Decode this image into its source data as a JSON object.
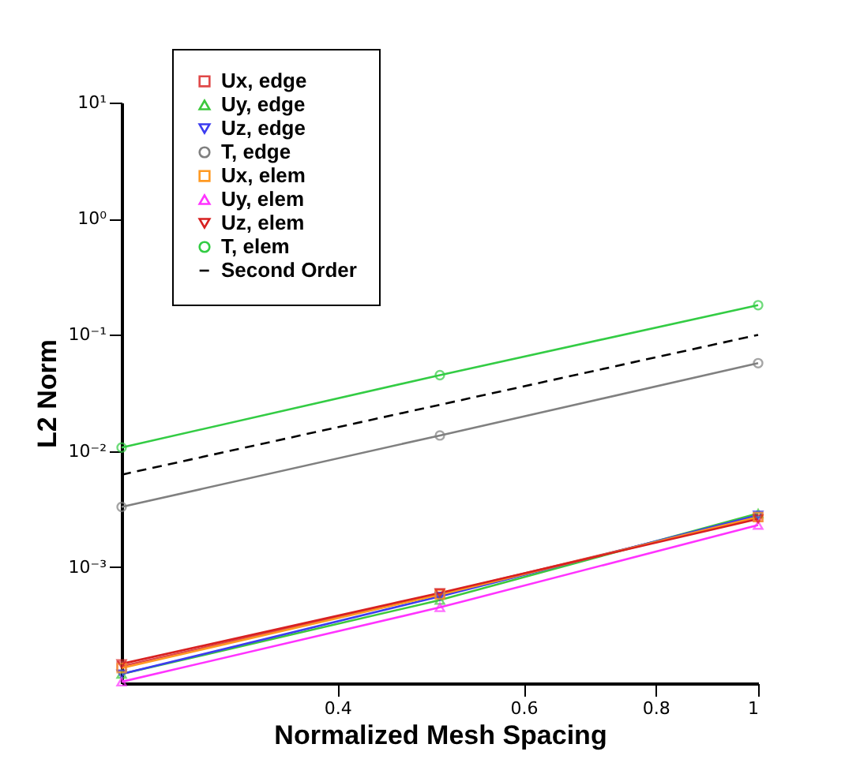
{
  "chart_data": {
    "type": "line",
    "xlabel": "Normalized Mesh Spacing",
    "ylabel": "L2 Norm",
    "x": [
      0.25,
      0.5,
      1
    ],
    "log": "xy",
    "legend": "top left",
    "xlim": [
      0.25,
      1
    ],
    "xticks": [
      0.4,
      0.6,
      0.8,
      1
    ],
    "ylim": [
      0.0001,
      10
    ],
    "yticks": [
      {
        "value": 0.001,
        "label": "10⁻³"
      },
      {
        "value": 0.01,
        "label": "10⁻²"
      },
      {
        "value": 0.1,
        "label": "10⁻¹"
      },
      {
        "value": 1,
        "label": "10⁰"
      },
      {
        "value": 10,
        "label": "10¹"
      }
    ],
    "series": [
      {
        "name": "Ux, edge",
        "color": "#e04848",
        "marker": "square",
        "line_style": "solid",
        "values": [
          0.00014,
          0.00059,
          0.0027
        ]
      },
      {
        "name": "Uy, edge",
        "color": "#3cc83c",
        "marker": "triangle",
        "line_style": "solid",
        "values": [
          0.00012,
          0.00052,
          0.0029
        ]
      },
      {
        "name": "Uz, edge",
        "color": "#3c3cf0",
        "marker": "triangle-down",
        "line_style": "solid",
        "values": [
          0.00012,
          0.00056,
          0.0028
        ]
      },
      {
        "name": "T, edge",
        "color": "#808080",
        "marker": "circle",
        "line_style": "solid",
        "values": [
          0.0033,
          0.0136,
          0.057
        ]
      },
      {
        "name": "Ux, elem",
        "color": "#ff9922",
        "marker": "square",
        "line_style": "solid",
        "values": [
          0.000135,
          0.00058,
          0.0027
        ]
      },
      {
        "name": "Uy, elem",
        "color": "#ff33ff",
        "marker": "triangle",
        "line_style": "solid",
        "values": [
          0.000103,
          0.00045,
          0.0023
        ]
      },
      {
        "name": "Uz, elem",
        "color": "#d82020",
        "marker": "triangle-down",
        "line_style": "solid",
        "values": [
          0.000147,
          0.0006,
          0.0026
        ]
      },
      {
        "name": "T, elem",
        "color": "#33cc44",
        "marker": "circle",
        "line_style": "solid",
        "values": [
          0.0107,
          0.045,
          0.18
        ]
      },
      {
        "name": "Second Order",
        "color": "#000000",
        "marker": "none",
        "line_style": "dashed",
        "values": [
          0.00625,
          0.025,
          0.1
        ]
      }
    ]
  }
}
